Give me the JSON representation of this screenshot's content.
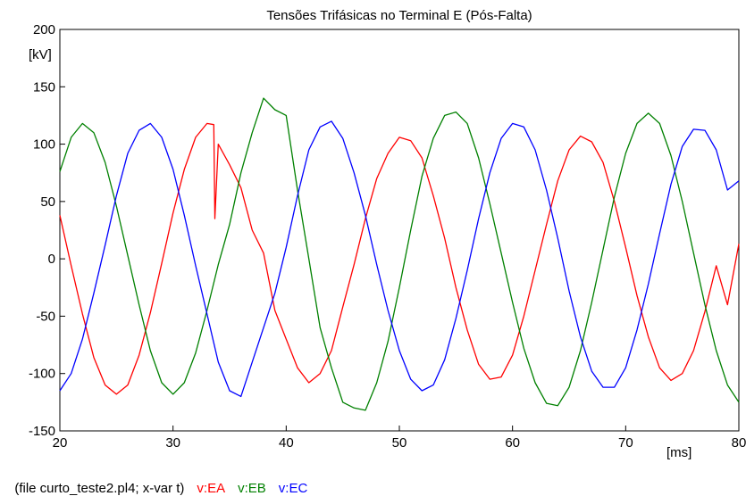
{
  "chart_data": {
    "type": "line",
    "title": "Tensões Trifásicas no Terminal E (Pós-Falta)",
    "xlabel": "[ms]",
    "ylabel": "[kV]",
    "xlim": [
      20,
      80
    ],
    "ylim": [
      -150,
      200
    ],
    "xticks": [
      "20",
      "30",
      "40",
      "50",
      "60",
      "70",
      "80"
    ],
    "yticks": [
      "-150",
      "-100",
      "-50",
      "0",
      "50",
      "100",
      "150",
      "200"
    ],
    "grid": false,
    "legend_position": "bottom-left",
    "series": [
      {
        "name": "v:EA",
        "color": "#ff0000",
        "x": [
          20,
          21,
          22,
          23,
          24,
          25,
          26,
          27,
          28,
          29,
          30,
          31,
          32,
          33,
          33.6,
          33.7,
          34,
          35,
          36,
          37,
          38,
          39,
          40,
          41,
          42,
          43,
          44,
          45,
          46,
          47,
          48,
          49,
          50,
          51,
          52,
          53,
          54,
          55,
          56,
          57,
          58,
          59,
          60,
          61,
          62,
          63,
          64,
          65,
          66,
          67,
          68,
          69,
          70,
          71,
          72,
          73,
          74,
          75,
          76,
          77,
          78,
          79,
          80
        ],
        "y": [
          38,
          -6,
          -48,
          -86,
          -110,
          -118,
          -110,
          -84,
          -47,
          -4,
          40,
          78,
          106,
          118,
          117,
          35,
          100,
          82,
          62,
          25,
          5,
          -45,
          -70,
          -95,
          -108,
          -100,
          -80,
          -42,
          -5,
          35,
          70,
          92,
          106,
          103,
          88,
          55,
          18,
          -25,
          -62,
          -92,
          -105,
          -103,
          -84,
          -50,
          -10,
          30,
          68,
          95,
          107,
          102,
          84,
          50,
          10,
          -32,
          -68,
          -95,
          -106,
          -100,
          -80,
          -46,
          -6,
          -40,
          13
        ]
      },
      {
        "name": "v:EB",
        "color": "#008000",
        "x": [
          20,
          21,
          22,
          23,
          24,
          25,
          26,
          27,
          28,
          29,
          30,
          31,
          32,
          33,
          34,
          35,
          36,
          37,
          38,
          39,
          40,
          41,
          42,
          43,
          44,
          45,
          46,
          47,
          48,
          49,
          50,
          51,
          52,
          53,
          54,
          55,
          56,
          57,
          58,
          59,
          60,
          61,
          62,
          63,
          64,
          65,
          66,
          67,
          68,
          69,
          70,
          71,
          72,
          73,
          74,
          75,
          76,
          77,
          78,
          79,
          80
        ],
        "y": [
          76,
          106,
          118,
          110,
          84,
          46,
          3,
          -40,
          -80,
          -108,
          -118,
          -108,
          -82,
          -45,
          -5,
          30,
          75,
          110,
          140,
          130,
          125,
          60,
          0,
          -60,
          -95,
          -125,
          -130,
          -132,
          -108,
          -72,
          -25,
          25,
          72,
          105,
          125,
          128,
          118,
          88,
          48,
          5,
          -38,
          -78,
          -108,
          -126,
          -128,
          -112,
          -80,
          -38,
          8,
          54,
          92,
          118,
          127,
          118,
          90,
          50,
          5,
          -40,
          -80,
          -110,
          -125
        ]
      },
      {
        "name": "v:EC",
        "color": "#0000ff",
        "x": [
          20,
          21,
          22,
          23,
          24,
          25,
          26,
          27,
          28,
          29,
          30,
          31,
          32,
          33,
          34,
          35,
          36,
          37,
          38,
          39,
          40,
          41,
          42,
          43,
          44,
          45,
          46,
          47,
          48,
          49,
          50,
          51,
          52,
          53,
          54,
          55,
          56,
          57,
          58,
          59,
          60,
          61,
          62,
          63,
          64,
          65,
          66,
          67,
          68,
          69,
          70,
          71,
          72,
          73,
          74,
          75,
          76,
          77,
          78,
          79,
          80
        ],
        "y": [
          -115,
          -100,
          -70,
          -30,
          12,
          55,
          92,
          112,
          118,
          106,
          78,
          38,
          -6,
          -48,
          -90,
          -115,
          -120,
          -90,
          -60,
          -30,
          10,
          55,
          95,
          115,
          120,
          105,
          75,
          38,
          -5,
          -45,
          -80,
          -105,
          -115,
          -110,
          -88,
          -52,
          -10,
          35,
          75,
          105,
          118,
          115,
          95,
          60,
          18,
          -28,
          -68,
          -98,
          -112,
          -112,
          -95,
          -62,
          -22,
          22,
          65,
          98,
          113,
          112,
          95,
          60,
          68
        ]
      }
    ],
    "footer_note": "(file curto_teste2.pl4; x-var t)"
  }
}
